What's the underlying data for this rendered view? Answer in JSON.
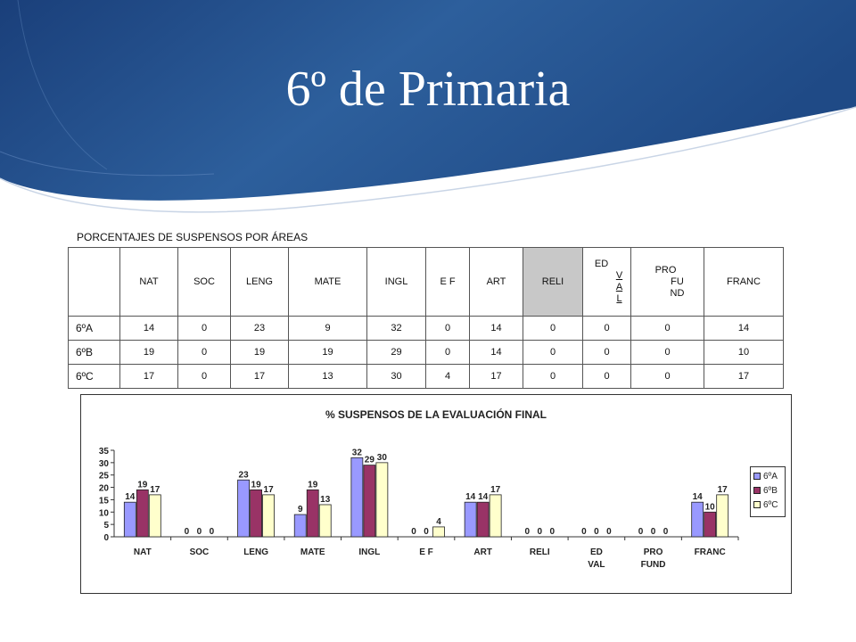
{
  "slide": {
    "title": "6º de Primaria"
  },
  "table": {
    "caption": "PORCENTAJES DE SUSPENSOS POR ÁREAS",
    "columns": [
      {
        "lines": [
          "NAT"
        ],
        "width": 64
      },
      {
        "lines": [
          "SOC"
        ],
        "width": 58
      },
      {
        "lines": [
          "LENG"
        ],
        "width": 64
      },
      {
        "lines": [
          "MATE"
        ],
        "width": 87
      },
      {
        "lines": [
          "INGL"
        ],
        "width": 65
      },
      {
        "lines": [
          "E F"
        ],
        "width": 48
      },
      {
        "lines": [
          "ART"
        ],
        "width": 59
      },
      {
        "lines": [
          "RELI"
        ],
        "width": 66
      },
      {
        "lines": [
          "ED",
          "V",
          "A",
          "L"
        ],
        "width": 53
      },
      {
        "lines": [
          "PRO",
          "FU",
          "ND"
        ],
        "width": 81
      },
      {
        "lines": [
          "FRANC"
        ],
        "width": 88
      }
    ],
    "rows": [
      {
        "label": "6ºA",
        "values": [
          "14",
          "0",
          "23",
          "9",
          "32",
          "0",
          "14",
          "0",
          "0",
          "0",
          "14"
        ]
      },
      {
        "label": "6ºB",
        "values": [
          "19",
          "0",
          "19",
          "19",
          "29",
          "0",
          "14",
          "0",
          "0",
          "0",
          "10"
        ]
      },
      {
        "label": "6ºC",
        "values": [
          "17",
          "0",
          "17",
          "13",
          "30",
          "4",
          "17",
          "0",
          "0",
          "0",
          "17"
        ]
      }
    ]
  },
  "chart_data": {
    "type": "bar",
    "title": "%  SUSPENSOS  DE  LA EVALUACIÓN FINAL",
    "categories": [
      "NAT",
      "SOC",
      "LENG",
      "MATE",
      "INGL",
      "E F",
      "ART",
      "RELI",
      "ED\nVAL",
      "PRO\nFUND",
      "FRANC"
    ],
    "series": [
      {
        "name": "6ºA",
        "color": "#9999ff",
        "values": [
          14,
          0,
          23,
          9,
          32,
          0,
          14,
          0,
          0,
          0,
          14
        ]
      },
      {
        "name": "6ºB",
        "color": "#993366",
        "values": [
          19,
          0,
          19,
          19,
          29,
          0,
          14,
          0,
          0,
          0,
          10
        ]
      },
      {
        "name": "6ºC",
        "color": "#ffffcc",
        "values": [
          17,
          0,
          17,
          13,
          30,
          4,
          17,
          0,
          0,
          0,
          17
        ]
      }
    ],
    "ylim": [
      0,
      35
    ],
    "yticks": [
      0,
      5,
      10,
      15,
      20,
      25,
      30,
      35
    ],
    "grid": false,
    "legend": "right"
  }
}
